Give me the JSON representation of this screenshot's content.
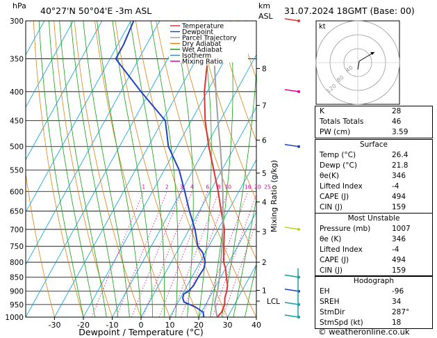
{
  "header": {
    "location": "40°27'N  50°04'E  -3m  ASL",
    "datetime": "31.07.2024  18GMT  (Base: 00)",
    "left_unit": "hPa",
    "right_unit_top": "km",
    "right_unit_bottom": "ASL"
  },
  "legend": [
    "Temperature",
    "Dewpoint",
    "Parcel Trajectory",
    "Dry Adiabat",
    "Wet Adiabat",
    "Isotherm",
    "Mixing Ratio"
  ],
  "legend_colors": [
    "#e03030",
    "#2040c0",
    "#a0a0a0",
    "#e08010",
    "#10a010",
    "#00a0e0",
    "#e000a0"
  ],
  "chart_data": {
    "type": "line",
    "xlabel": "Dewpoint / Temperature (°C)",
    "ylabel_right": "Mixing Ratio (g/kg)",
    "pressure_levels": [
      300,
      350,
      400,
      450,
      500,
      550,
      600,
      650,
      700,
      750,
      800,
      850,
      900,
      950,
      1000
    ],
    "x_ticks": [
      -30,
      -20,
      -10,
      0,
      10,
      20,
      30,
      40
    ],
    "km_ticks": [
      {
        "label": "8",
        "p": 364
      },
      {
        "label": "7",
        "p": 423
      },
      {
        "label": "6",
        "p": 487
      },
      {
        "label": "5",
        "p": 557
      },
      {
        "label": "4",
        "p": 626
      },
      {
        "label": "3",
        "p": 706
      },
      {
        "label": "2",
        "p": 800
      },
      {
        "label": "1",
        "p": 897
      }
    ],
    "lcl": {
      "label": "LCL",
      "p": 937
    },
    "mixing_ratio_labels": [
      {
        "label": "1",
        "g": 1
      },
      {
        "label": "2",
        "g": 2
      },
      {
        "label": "3",
        "g": 3
      },
      {
        "label": "4",
        "g": 4
      },
      {
        "label": "6",
        "g": 6
      },
      {
        "label": "8",
        "g": 8
      },
      {
        "label": "10",
        "g": 10
      },
      {
        "label": "16",
        "g": 16
      },
      {
        "label": "20",
        "g": 20
      },
      {
        "label": "25",
        "g": 25
      }
    ],
    "series": [
      {
        "name": "Temperature",
        "color": "#e03030",
        "points": [
          [
            1000,
            26.4
          ],
          [
            980,
            27.0
          ],
          [
            950,
            26.6
          ],
          [
            925,
            25.4
          ],
          [
            900,
            24.8
          ],
          [
            880,
            24.0
          ],
          [
            850,
            22.0
          ],
          [
            820,
            20.0
          ],
          [
            800,
            18.2
          ],
          [
            750,
            15.2
          ],
          [
            700,
            12.2
          ],
          [
            650,
            7.6
          ],
          [
            600,
            2.8
          ],
          [
            550,
            -2.8
          ],
          [
            500,
            -9.0
          ],
          [
            450,
            -15.2
          ],
          [
            400,
            -21.0
          ],
          [
            370,
            -24.0
          ],
          [
            360,
            -25.0
          ]
        ]
      },
      {
        "name": "Dewpoint",
        "color": "#2040c0",
        "points": [
          [
            1000,
            21.8
          ],
          [
            980,
            20.6
          ],
          [
            960,
            17.0
          ],
          [
            940,
            12.0
          ],
          [
            925,
            10.8
          ],
          [
            910,
            10.4
          ],
          [
            900,
            11.5
          ],
          [
            880,
            12.2
          ],
          [
            850,
            12.2
          ],
          [
            820,
            12.5
          ],
          [
            800,
            11.8
          ],
          [
            770,
            9.2
          ],
          [
            750,
            6.2
          ],
          [
            700,
            2.0
          ],
          [
            650,
            -3.4
          ],
          [
            600,
            -8.8
          ],
          [
            550,
            -14.8
          ],
          [
            500,
            -23.0
          ],
          [
            450,
            -29.0
          ],
          [
            400,
            -43.0
          ],
          [
            350,
            -58.0
          ],
          [
            330,
            -58.0
          ],
          [
            300,
            -59.0
          ]
        ]
      },
      {
        "name": "Parcel Trajectory",
        "color": "#a0a0a0",
        "points": [
          [
            1000,
            26.4
          ],
          [
            970,
            24.5
          ],
          [
            950,
            23.2
          ],
          [
            937,
            22.6
          ],
          [
            900,
            21.6
          ],
          [
            850,
            19.6
          ],
          [
            800,
            17.2
          ],
          [
            750,
            14.6
          ],
          [
            700,
            11.6
          ],
          [
            650,
            8.2
          ],
          [
            600,
            4.4
          ],
          [
            550,
            0.0
          ],
          [
            500,
            -5.0
          ],
          [
            450,
            -10.8
          ],
          [
            400,
            -17.0
          ],
          [
            370,
            -21.0
          ],
          [
            360,
            -22.4
          ]
        ]
      }
    ]
  },
  "hodograph": {
    "label": "kt",
    "ring_labels": [
      "40",
      "80",
      "120"
    ]
  },
  "indices": [
    {
      "label": "K",
      "value": "28"
    },
    {
      "label": "Totals Totals",
      "value": "46"
    },
    {
      "label": "PW (cm)",
      "value": "3.59"
    }
  ],
  "surface": {
    "title": "Surface",
    "rows": [
      {
        "label": "Temp (°C)",
        "value": "26.4"
      },
      {
        "label": "Dewp (°C)",
        "value": "21.8"
      },
      {
        "label": "θe(K)",
        "value": "346"
      },
      {
        "label": "Lifted Index",
        "value": "-4"
      },
      {
        "label": "CAPE (J)",
        "value": "494"
      },
      {
        "label": "CIN (J)",
        "value": "159"
      }
    ]
  },
  "most_unstable": {
    "title": "Most Unstable",
    "rows": [
      {
        "label": "Pressure (mb)",
        "value": "1007"
      },
      {
        "label": "θe (K)",
        "value": "346"
      },
      {
        "label": "Lifted Index",
        "value": "-4"
      },
      {
        "label": "CAPE (J)",
        "value": "494"
      },
      {
        "label": "CIN (J)",
        "value": "159"
      }
    ]
  },
  "hodo_table": {
    "title": "Hodograph",
    "rows": [
      {
        "label": "EH",
        "value": "-96"
      },
      {
        "label": "SREH",
        "value": "34"
      },
      {
        "label": "StmDir",
        "value": "287°"
      },
      {
        "label": "StmSpd (kt)",
        "value": "18"
      }
    ]
  },
  "footer": "© weatheronline.co.uk"
}
